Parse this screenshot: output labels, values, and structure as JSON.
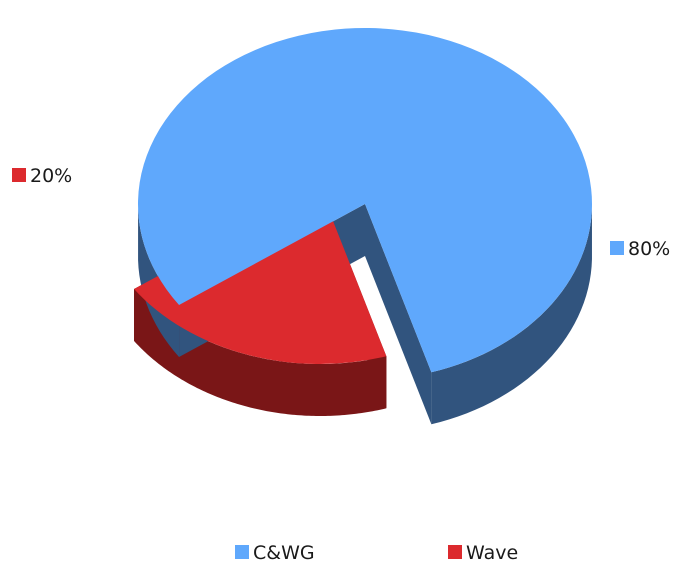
{
  "chart_data": {
    "type": "pie",
    "title": "",
    "categories": [
      "C&WG",
      "Wave"
    ],
    "values": [
      80,
      20
    ],
    "data_labels": [
      "80%",
      "20%"
    ],
    "colors": [
      "#5fa8fc",
      "#dc2a2e"
    ],
    "side_colors": [
      "#31547e",
      "#7a1617"
    ],
    "legend_position": "bottom",
    "style": "3d-exploded",
    "grid": false
  }
}
